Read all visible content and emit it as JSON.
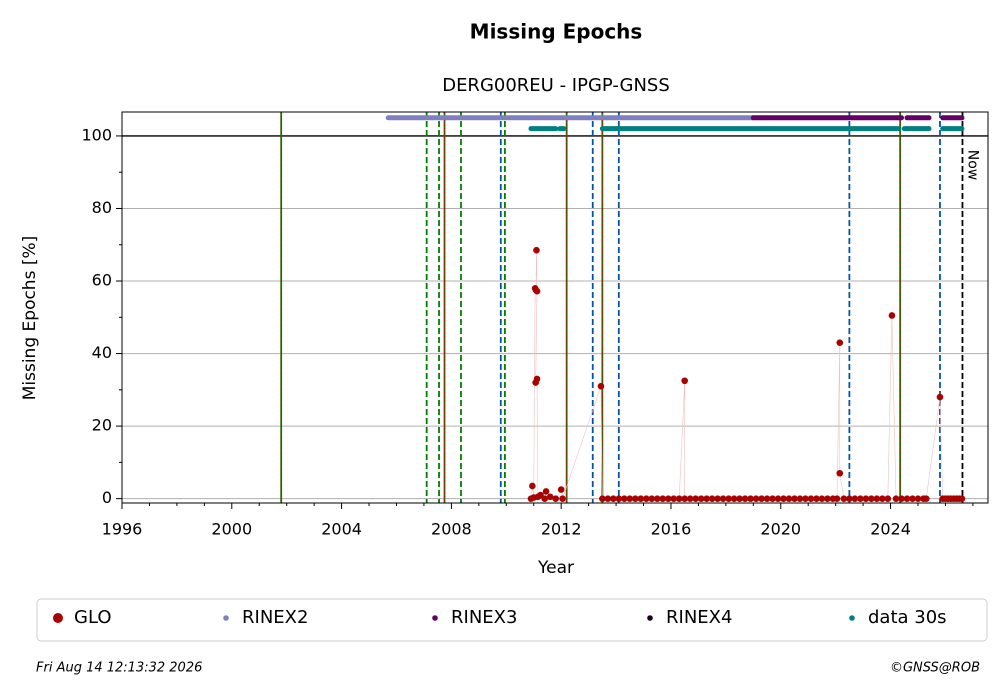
{
  "chart_data": {
    "type": "scatter",
    "title": "Missing Epochs",
    "subtitle": "DERG00REU - IPGP-GNSS",
    "xlabel": "Year",
    "ylabel": "Missing Epochs [%]",
    "now_label": "Now",
    "timestamp": "Fri Aug 14 12:13:32 2026",
    "credit": "©GNSS@ROB",
    "xlim": [
      1996,
      2027.55
    ],
    "ylim": [
      -1.2,
      106.6
    ],
    "xticks": [
      1996,
      2000,
      2004,
      2008,
      2012,
      2016,
      2020,
      2024
    ],
    "xminorticks": [
      1997,
      1998,
      1999,
      2001,
      2002,
      2003,
      2005,
      2006,
      2007,
      2009,
      2010,
      2011,
      2013,
      2014,
      2015,
      2017,
      2018,
      2019,
      2021,
      2022,
      2023,
      2025,
      2026,
      2027
    ],
    "yticks": [
      0,
      20,
      40,
      60,
      80,
      100
    ],
    "yminorticks": [
      10,
      30,
      50,
      70,
      90
    ],
    "grid": true,
    "hline": 100,
    "vlines": [
      {
        "x": 2001.8,
        "color": "#008000",
        "style": "solid"
      },
      {
        "x": 2007.75,
        "color": "#008000",
        "style": "solid"
      },
      {
        "x": 2012.2,
        "color": "#008000",
        "style": "solid"
      },
      {
        "x": 2013.5,
        "color": "#008000",
        "style": "solid"
      },
      {
        "x": 2024.35,
        "color": "#008000",
        "style": "solid"
      },
      {
        "x": 2007.1,
        "color": "#008000",
        "style": "dashed"
      },
      {
        "x": 2007.55,
        "color": "#008000",
        "style": "dashed"
      },
      {
        "x": 2008.35,
        "color": "#008000",
        "style": "dashed"
      },
      {
        "x": 2009.95,
        "color": "#008000",
        "style": "dashed"
      },
      {
        "x": 2009.8,
        "color": "#0055aa",
        "style": "dashed"
      },
      {
        "x": 2013.15,
        "color": "#0055aa",
        "style": "dashed"
      },
      {
        "x": 2014.1,
        "color": "#0055aa",
        "style": "dashed"
      },
      {
        "x": 2022.5,
        "color": "#0055aa",
        "style": "dashed"
      },
      {
        "x": 2025.8,
        "color": "#0055aa",
        "style": "dashed"
      },
      {
        "x": 2026.62,
        "color": "#000000",
        "style": "dashed"
      }
    ],
    "series": [
      {
        "name": "GLO",
        "color": "#aa0000",
        "mode": "points",
        "x": [
          2010.9,
          2010.95,
          2011.0,
          2011.05,
          2011.08,
          2011.1,
          2011.12,
          2011.07,
          2011.12,
          2011.15,
          2011.25,
          2011.4,
          2011.45,
          2011.6,
          2011.8,
          2012.0,
          2012.05,
          2013.45,
          2013.5,
          2013.7,
          2013.9,
          2014.1,
          2014.3,
          2014.5,
          2014.7,
          2014.9,
          2015.1,
          2015.3,
          2015.5,
          2015.7,
          2015.9,
          2016.1,
          2016.3,
          2016.5,
          2016.5,
          2016.7,
          2016.9,
          2017.1,
          2017.3,
          2017.5,
          2017.7,
          2017.9,
          2018.1,
          2018.3,
          2018.5,
          2018.7,
          2018.9,
          2019.1,
          2019.3,
          2019.5,
          2019.7,
          2019.9,
          2020.1,
          2020.3,
          2020.5,
          2020.7,
          2020.9,
          2021.1,
          2021.3,
          2021.5,
          2021.7,
          2021.9,
          2022.05,
          2022.15,
          2022.15,
          2022.3,
          2022.5,
          2022.7,
          2022.9,
          2023.1,
          2023.3,
          2023.5,
          2023.7,
          2023.9,
          2024.05,
          2024.2,
          2024.4,
          2024.6,
          2024.8,
          2025.0,
          2025.2,
          2025.3,
          2025.8,
          2025.9,
          2026.0,
          2026.1,
          2026.2,
          2026.3,
          2026.4,
          2026.5,
          2026.6
        ],
        "values": [
          0,
          3.5,
          0.3,
          58,
          57.5,
          68.5,
          57.2,
          32,
          33,
          0.5,
          1,
          0,
          2,
          0.5,
          0,
          2.5,
          0,
          31,
          0,
          0,
          0,
          0,
          0,
          0,
          0,
          0,
          0,
          0,
          0,
          0,
          0,
          0,
          0,
          32.5,
          0,
          0,
          0,
          0,
          0,
          0,
          0,
          0,
          0,
          0,
          0,
          0,
          0,
          0,
          0,
          0,
          0,
          0,
          0,
          0,
          0,
          0,
          0,
          0,
          0,
          0,
          0,
          0,
          0,
          43,
          7,
          0,
          0,
          0,
          0,
          0,
          0,
          0,
          0,
          0,
          50.5,
          0,
          0,
          0,
          0,
          0,
          0,
          0,
          28,
          0,
          0,
          0,
          0,
          0,
          0,
          0,
          0
        ]
      },
      {
        "name": "RINEX2",
        "color": "#8080c0",
        "mode": "band",
        "x": [
          2005.7,
          2019.0
        ],
        "values": [
          105,
          105
        ]
      },
      {
        "name": "RINEX3",
        "color": "#660066",
        "mode": "band",
        "x": [
          2019.0,
          2024.4,
          2024.5,
          2024.6,
          2025.4,
          2025.6,
          2025.9,
          2026.6
        ],
        "values": [
          105,
          105,
          null,
          105,
          105,
          null,
          105,
          105
        ]
      },
      {
        "name": "RINEX4",
        "color": "#1a0020",
        "mode": "band",
        "x": [],
        "values": []
      },
      {
        "name": "data 30s",
        "color": "#008080",
        "mode": "band",
        "x": [
          2010.9,
          2011.8,
          2011.85,
          2011.95,
          2012.1,
          2012.15,
          2013.5,
          2024.3,
          2024.4,
          2024.5,
          2025.4,
          2025.6,
          2025.9,
          2026.6
        ],
        "values": [
          102,
          102,
          null,
          102,
          102,
          null,
          102,
          102,
          null,
          102,
          102,
          null,
          102,
          102
        ]
      }
    ]
  }
}
